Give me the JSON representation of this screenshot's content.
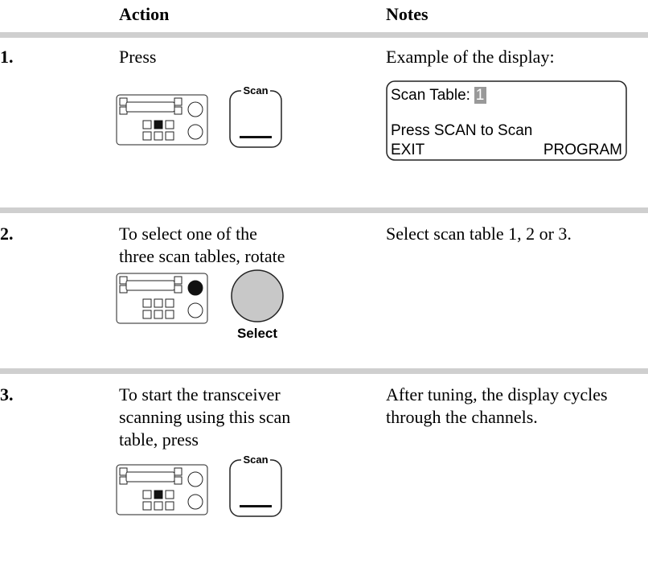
{
  "header": {
    "action": "Action",
    "notes": "Notes"
  },
  "steps": [
    {
      "number": "1.",
      "action": [
        "Press"
      ],
      "notes": [
        "Example of the display:"
      ],
      "button": "Scan",
      "display": {
        "label": "Scan Table:",
        "value": "1",
        "message": "Press SCAN to Scan",
        "left_key": "EXIT",
        "right_key": "PROGRAM"
      }
    },
    {
      "number": "2.",
      "action": [
        "To select one of the",
        "three scan tables, rotate"
      ],
      "notes": [
        "Select scan table 1, 2 or 3."
      ],
      "knob": "Select"
    },
    {
      "number": "3.",
      "action": [
        "To start the transceiver",
        "scanning using this scan",
        "table, press"
      ],
      "notes": [
        "After tuning, the display cycles",
        "through the channels."
      ],
      "button": "Scan"
    }
  ]
}
